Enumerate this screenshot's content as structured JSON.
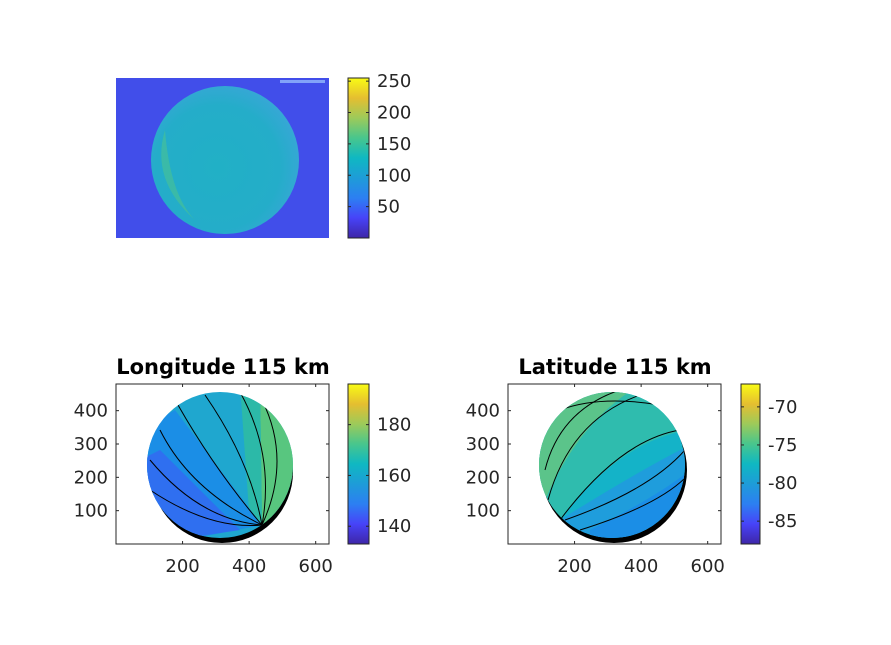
{
  "chart_data": [
    {
      "type": "heatmap",
      "title": "",
      "xlabel": "",
      "ylabel": "",
      "axes_visible": false,
      "colormap": "parula",
      "clim": [
        0,
        255
      ],
      "colorbar_ticks": [
        50,
        100,
        150,
        200,
        250
      ],
      "grid": false,
      "description": "Raw camera image of a disk"
    },
    {
      "type": "heatmap",
      "title": "Longitude 115 km",
      "xlabel": "",
      "ylabel": "",
      "xlim": [
        0,
        640
      ],
      "ylim": [
        0,
        480
      ],
      "xticks": [
        200,
        400,
        600
      ],
      "yticks": [
        100,
        200,
        300,
        400
      ],
      "colormap": "parula",
      "clim": [
        133,
        196
      ],
      "colorbar_ticks": [
        140,
        160,
        180
      ],
      "contours": true,
      "grid": false
    },
    {
      "type": "heatmap",
      "title": "Latitude 115 km",
      "xlabel": "",
      "ylabel": "",
      "xlim": [
        0,
        640
      ],
      "ylim": [
        0,
        480
      ],
      "xticks": [
        200,
        400,
        600
      ],
      "yticks": [
        100,
        200,
        300,
        400
      ],
      "colormap": "parula",
      "clim": [
        -88,
        -67
      ],
      "colorbar_ticks": [
        -85,
        -80,
        -75,
        -70
      ],
      "contours": true,
      "grid": false
    }
  ]
}
